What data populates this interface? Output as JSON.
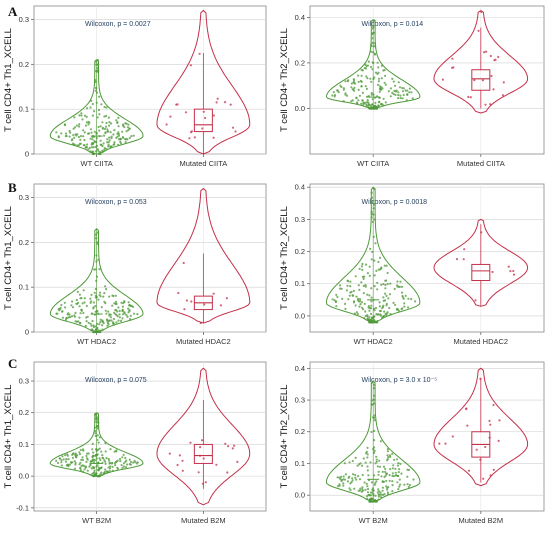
{
  "panel_letters": [
    "A",
    "B",
    "C"
  ],
  "colors": {
    "wt": "#4f9a3a",
    "mutated": "#c4304a",
    "grid": "#d0d0d0"
  },
  "chart_data": [
    {
      "type": "violin",
      "panel": "A",
      "ylabel": "T cell CD4+ Th1_XCELL",
      "categories": [
        "WT CIITA",
        "Mutated CIITA"
      ],
      "ylim": [
        0,
        0.33
      ],
      "yticks": [
        "0",
        "0.1",
        "0.2",
        "0.3"
      ],
      "annotation": "Wilcoxon, p = 0.0027",
      "series": [
        {
          "min": 0.0,
          "max": 0.21,
          "q1": 0.025,
          "median": 0.04,
          "q3": 0.06,
          "mode": 0.04,
          "n": 220
        },
        {
          "min": 0.0,
          "max": 0.32,
          "q1": 0.05,
          "median": 0.065,
          "q3": 0.1,
          "mode": 0.065,
          "n": 22,
          "box": true
        }
      ]
    },
    {
      "type": "violin",
      "panel": "A",
      "ylabel": "T cell CD4+ Th2_XCELL",
      "categories": [
        "WT CIITA",
        "Mutated CIITA"
      ],
      "ylim": [
        -0.2,
        0.45
      ],
      "yticks": [
        "0.0",
        "0.2",
        "0.4"
      ],
      "annotation": "Wilcoxon, p = 0.014",
      "series": [
        {
          "min": 0.0,
          "max": 0.39,
          "q1": 0.02,
          "median": 0.05,
          "q3": 0.1,
          "mode": 0.05,
          "n": 230
        },
        {
          "min": -0.02,
          "max": 0.43,
          "q1": 0.08,
          "median": 0.13,
          "q3": 0.17,
          "mode": 0.13,
          "n": 22,
          "box": true
        }
      ]
    },
    {
      "type": "violin",
      "panel": "B",
      "ylabel": "T cell CD4+ Th1_XCELL",
      "categories": [
        "WT HDAC2",
        "Mutated HDAC2"
      ],
      "ylim": [
        0,
        0.33
      ],
      "yticks": [
        "0",
        "0.1",
        "0.2",
        "0.3"
      ],
      "annotation": "Wilcoxon, p = 0.053",
      "series": [
        {
          "min": 0.0,
          "max": 0.23,
          "q1": 0.025,
          "median": 0.04,
          "q3": 0.06,
          "mode": 0.04,
          "n": 220
        },
        {
          "min": 0.02,
          "max": 0.32,
          "q1": 0.05,
          "median": 0.065,
          "q3": 0.08,
          "mode": 0.065,
          "n": 10,
          "box": true
        }
      ]
    },
    {
      "type": "violin",
      "panel": "B",
      "ylabel": "T cell CD4+ Th2_XCELL",
      "categories": [
        "WT HDAC2",
        "Mutated HDAC2"
      ],
      "ylim": [
        -0.05,
        0.41
      ],
      "yticks": [
        "0.0",
        "0.1",
        "0.2",
        "0.3",
        "0.4"
      ],
      "annotation": "Wilcoxon, p = 0.0018",
      "series": [
        {
          "min": -0.02,
          "max": 0.4,
          "q1": 0.02,
          "median": 0.05,
          "q3": 0.1,
          "mode": 0.04,
          "n": 230
        },
        {
          "min": 0.03,
          "max": 0.3,
          "q1": 0.11,
          "median": 0.14,
          "q3": 0.16,
          "mode": 0.15,
          "n": 10,
          "box": true
        }
      ]
    },
    {
      "type": "violin",
      "panel": "C",
      "ylabel": "T cell CD4+ Th1_XCELL",
      "categories": [
        "WT B2M",
        "Mutated B2M"
      ],
      "ylim": [
        -0.11,
        0.36
      ],
      "yticks": [
        "-0.1",
        "0.0",
        "0.1",
        "0.2",
        "0.3"
      ],
      "annotation": "Wilcoxon, p = 0.075",
      "series": [
        {
          "min": 0.0,
          "max": 0.2,
          "q1": 0.025,
          "median": 0.04,
          "q3": 0.06,
          "mode": 0.04,
          "n": 220
        },
        {
          "min": -0.09,
          "max": 0.34,
          "q1": 0.04,
          "median": 0.065,
          "q3": 0.1,
          "mode": 0.07,
          "n": 20,
          "box": true
        }
      ]
    },
    {
      "type": "violin",
      "panel": "C",
      "ylabel": "T cell CD4+ Th2_XCELL",
      "categories": [
        "WT B2M",
        "Mutated B2M"
      ],
      "ylim": [
        -0.05,
        0.42
      ],
      "yticks": [
        "0.0",
        "0.1",
        "0.2",
        "0.3",
        "0.4"
      ],
      "annotation": "Wilcoxon, p = 3.0 x 10⁻⁵",
      "series": [
        {
          "min": -0.02,
          "max": 0.36,
          "q1": 0.02,
          "median": 0.05,
          "q3": 0.1,
          "mode": 0.04,
          "n": 230
        },
        {
          "min": 0.03,
          "max": 0.4,
          "q1": 0.12,
          "median": 0.16,
          "q3": 0.2,
          "mode": 0.16,
          "n": 20,
          "box": true
        }
      ]
    }
  ]
}
